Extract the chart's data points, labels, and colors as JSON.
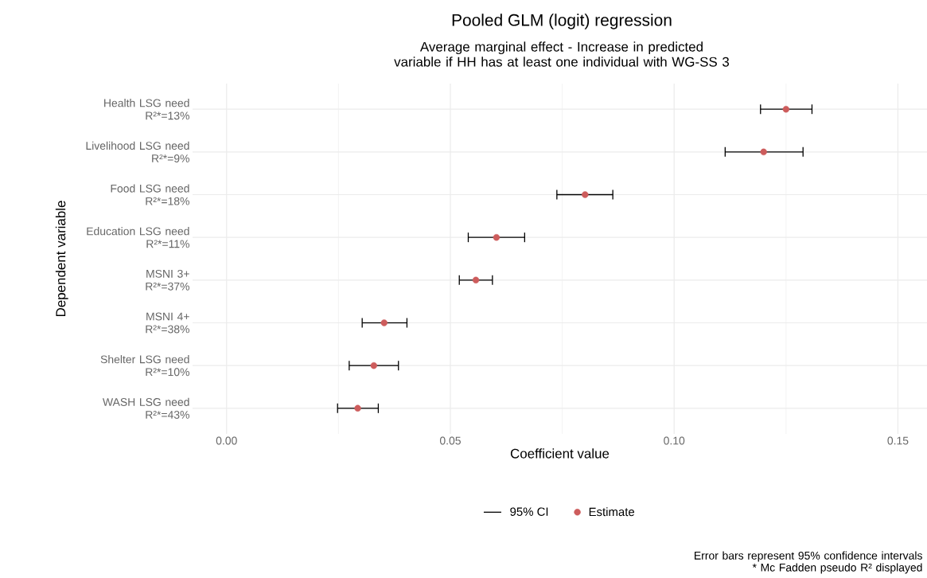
{
  "chart_data": {
    "type": "scatter",
    "orientation": "horizontal",
    "title": "Pooled GLM (logit) regression",
    "subtitle": "Average marginal effect - Increase in predicted\nvariable if HH has at least one individual with WG-SS 3",
    "xlabel": "Coefficient value",
    "ylabel": "Dependent variable",
    "categories": [
      "Health LSG need\nR²*=13%",
      "Livelihood LSG need\nR²*=9%",
      "Food LSG need\nR²*=18%",
      "Education LSG need\nR²*=11%",
      "MSNI 3+\nR²*=37%",
      "MSNI 4+\nR²*=38%",
      "Shelter LSG need\nR²*=10%",
      "WASH LSG need\nR²*=43%"
    ],
    "series": [
      {
        "name": "Estimate",
        "color": "#cd5c5c",
        "values": [
          0.125,
          0.12,
          0.0801,
          0.0603,
          0.0557,
          0.0352,
          0.0329,
          0.0293
        ],
        "errors": [
          [
            0.1193,
            0.1308
          ],
          [
            0.1114,
            0.1288
          ],
          [
            0.0738,
            0.0863
          ],
          [
            0.054,
            0.0666
          ],
          [
            0.052,
            0.0594
          ],
          [
            0.0303,
            0.0403
          ],
          [
            0.0274,
            0.0384
          ],
          [
            0.0248,
            0.0339
          ]
        ]
      }
    ],
    "xlim": [
      -0.0076,
      0.1565
    ],
    "xticks": [
      {
        "value": 0,
        "label": "0.00"
      },
      {
        "value": 0.05,
        "label": "0.05"
      },
      {
        "value": 0.1,
        "label": "0.10"
      },
      {
        "value": 0.15,
        "label": "0.15"
      }
    ],
    "grid": true,
    "legend": "bottom",
    "annotations": [
      "95% CI",
      "Error bars represent 95% confidence intervals\n* Mc Fadden pseudo R² displayed"
    ]
  }
}
